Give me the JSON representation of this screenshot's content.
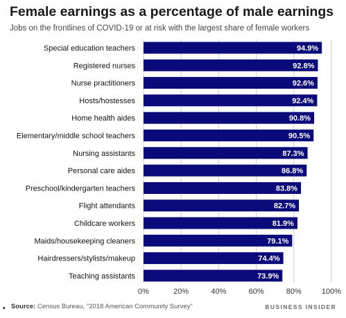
{
  "header": {
    "title": "Female earnings as a percentage of male earnings",
    "subtitle": "Jobs on the frontlines of COVID-19 or at risk with the largest share of female workers"
  },
  "footer": {
    "source_label": "Source:",
    "source_text": "Census Bureau, \"2018 American Community Survey\"",
    "brand": "BUSINESS INSIDER",
    "bullet": "•"
  },
  "colors": {
    "bar": "#0a0a7a",
    "grid": "#cccccc",
    "value_text": "#ffffff"
  },
  "chart_data": {
    "type": "bar",
    "orientation": "horizontal",
    "title": "Female earnings as a percentage of male earnings",
    "subtitle": "Jobs on the frontlines of COVID-19 or at risk with the largest share of female workers",
    "categories": [
      "Special education teachers",
      "Registered nurses",
      "Nurse practitioners",
      "Hosts/hostesses",
      "Home health aides",
      "Elementary/middle school teachers",
      "Nursing assistants",
      "Personal care aides",
      "Preschool/kindergarten teachers",
      "Flight attendants",
      "Childcare workers",
      "Maids/housekeeping cleaners",
      "Hairdressers/stylists/makeup",
      "Teaching assistants"
    ],
    "values": [
      94.9,
      92.8,
      92.6,
      92.4,
      90.8,
      90.5,
      87.3,
      86.8,
      83.8,
      82.7,
      81.9,
      79.1,
      74.4,
      73.9
    ],
    "value_labels": [
      "94.9%",
      "92.8%",
      "92.6%",
      "92.4%",
      "90.8%",
      "90.5%",
      "87.3%",
      "86.8%",
      "83.8%",
      "82.7%",
      "81.9%",
      "79.1%",
      "74.4%",
      "73.9%"
    ],
    "xlim": [
      0,
      100
    ],
    "xticks": [
      0,
      20,
      40,
      60,
      80,
      100
    ],
    "xtick_labels": [
      "0%",
      "20%",
      "40%",
      "60%",
      "80%",
      "100%"
    ],
    "grid": true,
    "legend": "none"
  }
}
